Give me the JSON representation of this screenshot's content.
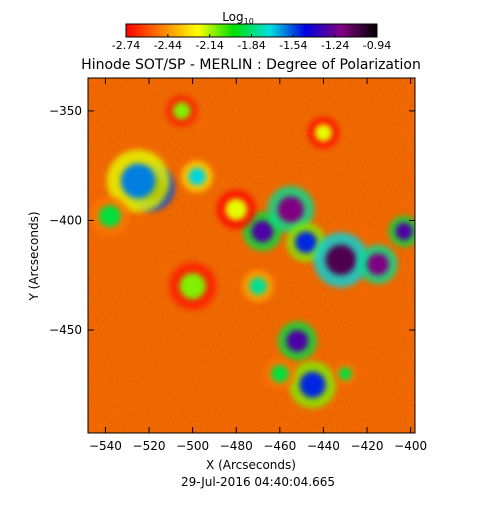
{
  "chart_data": {
    "type": "heatmap",
    "title": "Hinode SOT/SP - MERLIN : Degree of Polarization",
    "subtitle": "29-Jul-2016 04:40:04.665",
    "xlabel": "X (Arcseconds)",
    "ylabel": "Y (Arcseconds)",
    "xlim": [
      -548,
      -398
    ],
    "ylim": [
      -497,
      -335
    ],
    "xticks": [
      -540,
      -520,
      -500,
      -480,
      -460,
      -440,
      -420,
      -400
    ],
    "yticks": [
      -350,
      -400,
      -450
    ],
    "colorbar": {
      "label_main": "Log",
      "label_sub": "10",
      "ticks": [
        "-2.74",
        "-2.44",
        "-2.14",
        "-1.84",
        "-1.54",
        "-1.24",
        "-0.94"
      ],
      "range": [
        -2.74,
        -0.94
      ],
      "colors": [
        "#ff0000",
        "#ff8000",
        "#ffff00",
        "#00e000",
        "#00e0e0",
        "#0000e0",
        "#800080",
        "#000000"
      ]
    },
    "background_level": -2.6,
    "features": [
      {
        "x": -519,
        "y": -385,
        "r": 6,
        "value": -0.94
      },
      {
        "x": -525,
        "y": -382,
        "r": 8,
        "value": -1.6
      },
      {
        "x": -538,
        "y": -398,
        "r": 5,
        "value": -1.9
      },
      {
        "x": -498,
        "y": -380,
        "r": 4,
        "value": -1.7
      },
      {
        "x": -468,
        "y": -405,
        "r": 5,
        "value": -1.3
      },
      {
        "x": -455,
        "y": -395,
        "r": 6,
        "value": -1.2
      },
      {
        "x": -448,
        "y": -410,
        "r": 5,
        "value": -1.5
      },
      {
        "x": -432,
        "y": -418,
        "r": 7,
        "value": -1.1
      },
      {
        "x": -415,
        "y": -420,
        "r": 5,
        "value": -1.2
      },
      {
        "x": -403,
        "y": -405,
        "r": 4,
        "value": -1.3
      },
      {
        "x": -470,
        "y": -430,
        "r": 4,
        "value": -1.8
      },
      {
        "x": -452,
        "y": -455,
        "r": 5,
        "value": -1.3
      },
      {
        "x": -445,
        "y": -475,
        "r": 6,
        "value": -1.5
      },
      {
        "x": -460,
        "y": -470,
        "r": 4,
        "value": -1.9
      },
      {
        "x": -430,
        "y": -470,
        "r": 3,
        "value": -1.9
      },
      {
        "x": -500,
        "y": -430,
        "r": 6,
        "value": -2.1
      },
      {
        "x": -480,
        "y": -395,
        "r": 5,
        "value": -2.2
      },
      {
        "x": -505,
        "y": -350,
        "r": 4,
        "value": -2.1
      },
      {
        "x": -440,
        "y": -360,
        "r": 4,
        "value": -2.2
      }
    ]
  }
}
